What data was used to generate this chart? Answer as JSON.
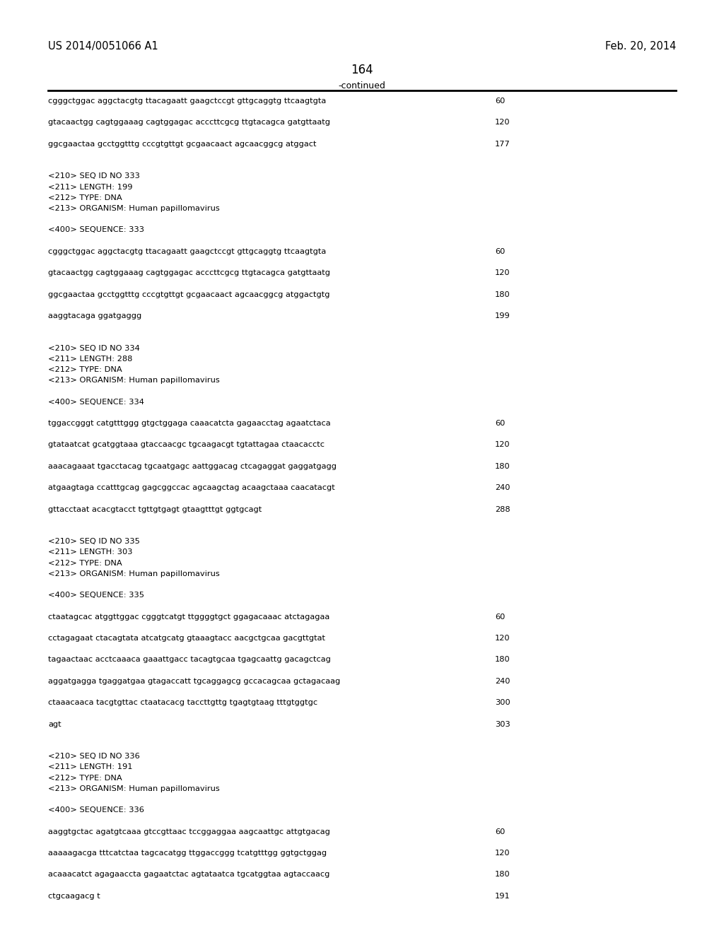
{
  "header_left": "US 2014/0051066 A1",
  "header_right": "Feb. 20, 2014",
  "page_number": "164",
  "continued_label": "-continued",
  "background_color": "#ffffff",
  "text_color": "#000000",
  "lines": [
    {
      "text": "cgggctggac aggctacgtg ttacagaatt gaagctccgt gttgcaggtg ttcaagtgta",
      "num": "60"
    },
    {
      "text": "",
      "num": ""
    },
    {
      "text": "gtacaactgg cagtggaaag cagtggagac acccttcgcg ttgtacagca gatgttaatg",
      "num": "120"
    },
    {
      "text": "",
      "num": ""
    },
    {
      "text": "ggcgaactaa gcctggtttg cccgtgttgt gcgaacaact agcaacggcg atggact",
      "num": "177"
    },
    {
      "text": "",
      "num": ""
    },
    {
      "text": "",
      "num": ""
    },
    {
      "text": "<210> SEQ ID NO 333",
      "num": ""
    },
    {
      "text": "<211> LENGTH: 199",
      "num": ""
    },
    {
      "text": "<212> TYPE: DNA",
      "num": ""
    },
    {
      "text": "<213> ORGANISM: Human papillomavirus",
      "num": ""
    },
    {
      "text": "",
      "num": ""
    },
    {
      "text": "<400> SEQUENCE: 333",
      "num": ""
    },
    {
      "text": "",
      "num": ""
    },
    {
      "text": "cgggctggac aggctacgtg ttacagaatt gaagctccgt gttgcaggtg ttcaagtgta",
      "num": "60"
    },
    {
      "text": "",
      "num": ""
    },
    {
      "text": "gtacaactgg cagtggaaag cagtggagac acccttcgcg ttgtacagca gatgttaatg",
      "num": "120"
    },
    {
      "text": "",
      "num": ""
    },
    {
      "text": "ggcgaactaa gcctggtttg cccgtgttgt gcgaacaact agcaacggcg atggactgtg",
      "num": "180"
    },
    {
      "text": "",
      "num": ""
    },
    {
      "text": "aaggtacaga ggatgaggg",
      "num": "199"
    },
    {
      "text": "",
      "num": ""
    },
    {
      "text": "",
      "num": ""
    },
    {
      "text": "<210> SEQ ID NO 334",
      "num": ""
    },
    {
      "text": "<211> LENGTH: 288",
      "num": ""
    },
    {
      "text": "<212> TYPE: DNA",
      "num": ""
    },
    {
      "text": "<213> ORGANISM: Human papillomavirus",
      "num": ""
    },
    {
      "text": "",
      "num": ""
    },
    {
      "text": "<400> SEQUENCE: 334",
      "num": ""
    },
    {
      "text": "",
      "num": ""
    },
    {
      "text": "tggaccgggt catgtttggg gtgctggaga caaacatcta gagaacctag agaatctaca",
      "num": "60"
    },
    {
      "text": "",
      "num": ""
    },
    {
      "text": "gtataatcat gcatggtaaa gtaccaacgc tgcaagacgt tgtattagaa ctaacacctc",
      "num": "120"
    },
    {
      "text": "",
      "num": ""
    },
    {
      "text": "aaacagaaat tgacctacag tgcaatgagc aattggacag ctcagaggat gaggatgagg",
      "num": "180"
    },
    {
      "text": "",
      "num": ""
    },
    {
      "text": "atgaagtaga ccatttgcag gagcggccac agcaagctag acaagctaaa caacatacgt",
      "num": "240"
    },
    {
      "text": "",
      "num": ""
    },
    {
      "text": "gttacctaat acacgtacct tgttgtgagt gtaagtttgt ggtgcagt",
      "num": "288"
    },
    {
      "text": "",
      "num": ""
    },
    {
      "text": "",
      "num": ""
    },
    {
      "text": "<210> SEQ ID NO 335",
      "num": ""
    },
    {
      "text": "<211> LENGTH: 303",
      "num": ""
    },
    {
      "text": "<212> TYPE: DNA",
      "num": ""
    },
    {
      "text": "<213> ORGANISM: Human papillomavirus",
      "num": ""
    },
    {
      "text": "",
      "num": ""
    },
    {
      "text": "<400> SEQUENCE: 335",
      "num": ""
    },
    {
      "text": "",
      "num": ""
    },
    {
      "text": "ctaatagcac atggttggac cgggtcatgt ttggggtgct ggagacaaac atctagagaa",
      "num": "60"
    },
    {
      "text": "",
      "num": ""
    },
    {
      "text": "cctagagaat ctacagtata atcatgcatg gtaaagtacc aacgctgcaa gacgttgtat",
      "num": "120"
    },
    {
      "text": "",
      "num": ""
    },
    {
      "text": "tagaactaac acctcaaaca gaaattgacc tacagtgcaa tgagcaattg gacagctcag",
      "num": "180"
    },
    {
      "text": "",
      "num": ""
    },
    {
      "text": "aggatgagga tgaggatgaa gtagaccatt tgcaggagcg gccacagcaa gctagacaag",
      "num": "240"
    },
    {
      "text": "",
      "num": ""
    },
    {
      "text": "ctaaacaaca tacgtgttac ctaatacacg taccttgttg tgagtgtaag tttgtggtgc",
      "num": "300"
    },
    {
      "text": "",
      "num": ""
    },
    {
      "text": "agt",
      "num": "303"
    },
    {
      "text": "",
      "num": ""
    },
    {
      "text": "",
      "num": ""
    },
    {
      "text": "<210> SEQ ID NO 336",
      "num": ""
    },
    {
      "text": "<211> LENGTH: 191",
      "num": ""
    },
    {
      "text": "<212> TYPE: DNA",
      "num": ""
    },
    {
      "text": "<213> ORGANISM: Human papillomavirus",
      "num": ""
    },
    {
      "text": "",
      "num": ""
    },
    {
      "text": "<400> SEQUENCE: 336",
      "num": ""
    },
    {
      "text": "",
      "num": ""
    },
    {
      "text": "aaggtgctac agatgtcaaa gtccgttaac tccggaggaa aagcaattgc attgtgacag",
      "num": "60"
    },
    {
      "text": "",
      "num": ""
    },
    {
      "text": "aaaaagacga tttcatctaa tagcacatgg ttggaccggg tcatgtttgg ggtgctggag",
      "num": "120"
    },
    {
      "text": "",
      "num": ""
    },
    {
      "text": "acaaacatct agagaaccta gagaatctac agtataatca tgcatggtaa agtaccaacg",
      "num": "180"
    },
    {
      "text": "",
      "num": ""
    },
    {
      "text": "ctgcaagacg t",
      "num": "191"
    }
  ]
}
